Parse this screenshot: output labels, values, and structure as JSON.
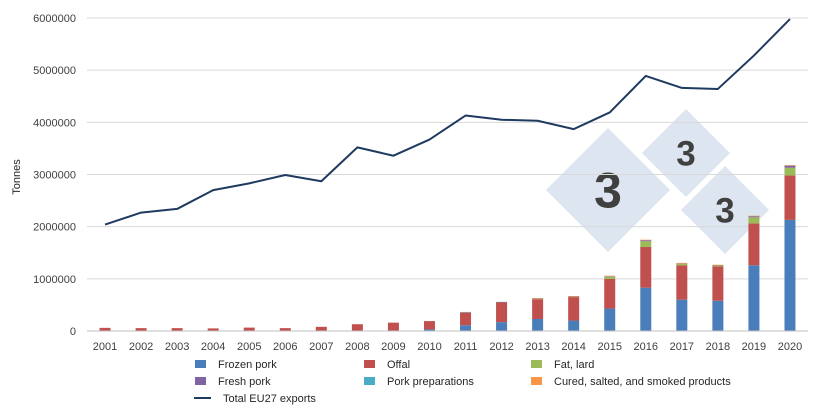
{
  "chart_data": {
    "type": "bar",
    "stacked": true,
    "ylabel": "Tonnes",
    "xlabel": "",
    "ylim": [
      0,
      6000000
    ],
    "yticks": [
      "0",
      "1000000",
      "2000000",
      "3000000",
      "4000000",
      "5000000",
      "6000000"
    ],
    "grid": true,
    "legend_position": "bottom",
    "categories": [
      "2001",
      "2002",
      "2003",
      "2004",
      "2005",
      "2006",
      "2007",
      "2008",
      "2009",
      "2010",
      "2011",
      "2012",
      "2013",
      "2014",
      "2015",
      "2016",
      "2017",
      "2018",
      "2019",
      "2020"
    ],
    "series": [
      {
        "name": "Frozen pork",
        "color": "#4a7ebb",
        "values": [
          0,
          0,
          0,
          0,
          0,
          0,
          0,
          0,
          0,
          30000,
          110000,
          170000,
          230000,
          200000,
          430000,
          830000,
          600000,
          580000,
          1260000,
          2130000
        ]
      },
      {
        "name": "Offal",
        "color": "#c0504d",
        "values": [
          60000,
          55000,
          55000,
          50000,
          65000,
          55000,
          80000,
          130000,
          160000,
          160000,
          240000,
          380000,
          380000,
          450000,
          570000,
          780000,
          660000,
          660000,
          800000,
          850000
        ]
      },
      {
        "name": "Fat, lard",
        "color": "#9bbb59",
        "values": [
          0,
          0,
          0,
          0,
          0,
          0,
          0,
          0,
          0,
          0,
          10000,
          5000,
          10000,
          10000,
          40000,
          110000,
          30000,
          20000,
          120000,
          150000
        ]
      },
      {
        "name": "Fresh pork",
        "color": "#8064a2",
        "values": [
          0,
          0,
          0,
          0,
          0,
          0,
          0,
          0,
          0,
          0,
          5000,
          3000,
          5000,
          5000,
          10000,
          20000,
          10000,
          5000,
          20000,
          40000
        ]
      },
      {
        "name": "Pork preparations",
        "color": "#4bacc6",
        "values": [
          0,
          0,
          0,
          0,
          0,
          0,
          0,
          0,
          0,
          0,
          0,
          0,
          0,
          0,
          0,
          0,
          0,
          0,
          0,
          0
        ]
      },
      {
        "name": "Cured, salted, and smoked products",
        "color": "#f79646",
        "values": [
          0,
          0,
          0,
          0,
          0,
          0,
          0,
          0,
          0,
          0,
          0,
          0,
          5000,
          5000,
          10000,
          10000,
          5000,
          5000,
          10000,
          10000
        ]
      }
    ],
    "line_series": {
      "name": "Total EU27 exports",
      "color": "#1f3a5f",
      "values": [
        2040000,
        2270000,
        2340000,
        2700000,
        2830000,
        2990000,
        2870000,
        3520000,
        3360000,
        3670000,
        4130000,
        4050000,
        4030000,
        3870000,
        4190000,
        4890000,
        4660000,
        4640000,
        5280000,
        5980000
      ]
    }
  }
}
